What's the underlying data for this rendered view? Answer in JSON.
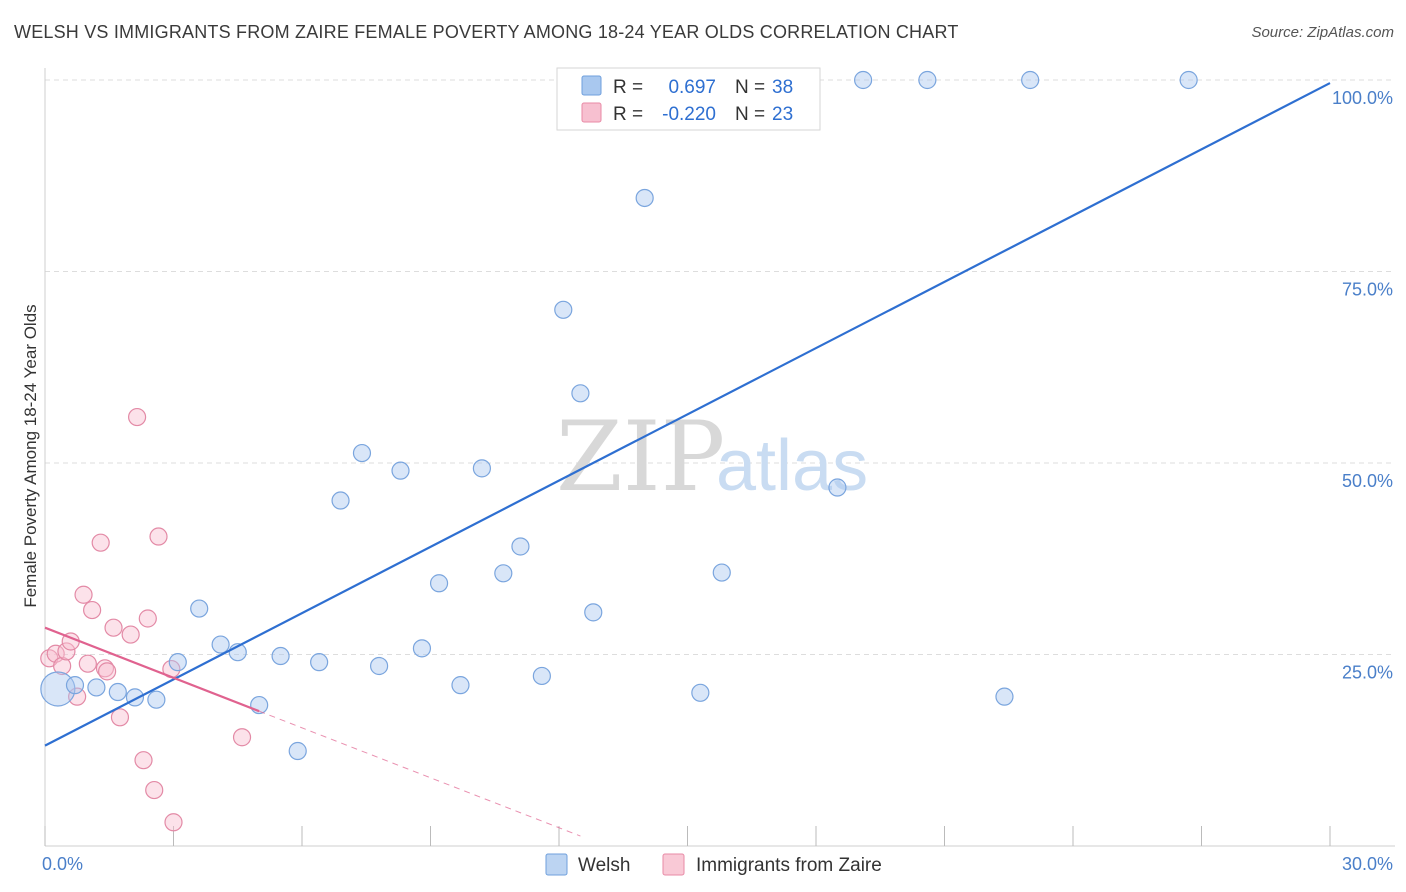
{
  "header": {
    "title": "WELSH VS IMMIGRANTS FROM ZAIRE FEMALE POVERTY AMONG 18-24 YEAR OLDS CORRELATION CHART",
    "source": "Source: ZipAtlas.com"
  },
  "watermark": {
    "zip": "ZIP",
    "atlas": "atlas"
  },
  "stats_legend": {
    "rows": [
      {
        "r_label": "R =",
        "r_value": "0.697",
        "n_label": "N =",
        "n_value": "38",
        "color": "#a9c8ef",
        "border": "#6f9fdc"
      },
      {
        "r_label": "R =",
        "r_value": "-0.220",
        "n_label": "N =",
        "n_value": "23",
        "color": "#f7c0d0",
        "border": "#e88aa6"
      }
    ]
  },
  "bottom_legend": {
    "items": [
      {
        "label": "Welsh",
        "color": "#bcd4f2",
        "border": "#6f9fdc"
      },
      {
        "label": "Immigrants from Zaire",
        "color": "#f9c9d6",
        "border": "#e88aa6"
      }
    ]
  },
  "colors": {
    "welsh_fill": "rgba(170,200,240,0.45)",
    "welsh_stroke": "#7aa5de",
    "welsh_line": "#2e6fd1",
    "zaire_fill": "rgba(248,190,208,0.45)",
    "zaire_stroke": "#e38aa6",
    "zaire_line": "#e0628f",
    "grid": "#dddddd",
    "tick_text": "#4a7fc9"
  },
  "chart_data": {
    "type": "scatter",
    "title": "WELSH VS IMMIGRANTS FROM ZAIRE FEMALE POVERTY AMONG 18-24 YEAR OLDS CORRELATION CHART",
    "xlabel": "",
    "ylabel": "Female Poverty Among 18-24 Year Olds",
    "xlim": [
      0,
      30
    ],
    "ylim": [
      0,
      100
    ],
    "x_tick_labels": [
      {
        "value": 0,
        "label": "0.0%"
      },
      {
        "value": 30,
        "label": "30.0%"
      }
    ],
    "y_tick_labels": [
      {
        "value": 25,
        "label": "25.0%"
      },
      {
        "value": 50,
        "label": "50.0%"
      },
      {
        "value": 75,
        "label": "75.0%"
      },
      {
        "value": 100,
        "label": "100.0%"
      }
    ],
    "x_minor_ticks": [
      0,
      3,
      6,
      9,
      12,
      15,
      18,
      21,
      24,
      27,
      30
    ],
    "grid": true,
    "legend_position": "bottom",
    "series": [
      {
        "name": "Welsh",
        "points": [
          {
            "x": 0.3,
            "y": 20.5,
            "size": "large"
          },
          {
            "x": 0.7,
            "y": 21.0
          },
          {
            "x": 1.2,
            "y": 20.7
          },
          {
            "x": 1.7,
            "y": 20.1
          },
          {
            "x": 2.1,
            "y": 19.4
          },
          {
            "x": 2.6,
            "y": 19.1
          },
          {
            "x": 3.1,
            "y": 24.0
          },
          {
            "x": 3.6,
            "y": 31.0
          },
          {
            "x": 4.1,
            "y": 26.3
          },
          {
            "x": 4.5,
            "y": 25.3
          },
          {
            "x": 5.0,
            "y": 18.4
          },
          {
            "x": 5.5,
            "y": 24.8
          },
          {
            "x": 5.9,
            "y": 12.4
          },
          {
            "x": 6.4,
            "y": 24.0
          },
          {
            "x": 6.9,
            "y": 45.1
          },
          {
            "x": 7.4,
            "y": 51.3
          },
          {
            "x": 7.8,
            "y": 23.5
          },
          {
            "x": 8.3,
            "y": 49.0
          },
          {
            "x": 8.8,
            "y": 25.8
          },
          {
            "x": 9.2,
            "y": 34.3
          },
          {
            "x": 9.7,
            "y": 21.0
          },
          {
            "x": 10.2,
            "y": 49.3
          },
          {
            "x": 10.7,
            "y": 35.6
          },
          {
            "x": 11.1,
            "y": 39.1
          },
          {
            "x": 11.6,
            "y": 22.2
          },
          {
            "x": 12.1,
            "y": 70.0
          },
          {
            "x": 12.5,
            "y": 59.1
          },
          {
            "x": 12.8,
            "y": 30.5
          },
          {
            "x": 14.0,
            "y": 84.6
          },
          {
            "x": 14.6,
            "y": 100.0
          },
          {
            "x": 15.3,
            "y": 20.0
          },
          {
            "x": 15.8,
            "y": 35.7
          },
          {
            "x": 18.5,
            "y": 46.8
          },
          {
            "x": 19.1,
            "y": 100.0
          },
          {
            "x": 20.6,
            "y": 100.0
          },
          {
            "x": 22.4,
            "y": 19.5
          },
          {
            "x": 23.0,
            "y": 100.0
          },
          {
            "x": 26.7,
            "y": 100.0
          }
        ],
        "trend": {
          "x": [
            0,
            30
          ],
          "y": [
            13.1,
            99.6
          ]
        }
      },
      {
        "name": "Immigrants from Zaire",
        "points": [
          {
            "x": 0.1,
            "y": 24.5
          },
          {
            "x": 0.25,
            "y": 25.1
          },
          {
            "x": 0.4,
            "y": 23.5
          },
          {
            "x": 0.5,
            "y": 25.4
          },
          {
            "x": 0.6,
            "y": 26.7
          },
          {
            "x": 0.75,
            "y": 19.5
          },
          {
            "x": 0.9,
            "y": 32.8
          },
          {
            "x": 1.0,
            "y": 23.8
          },
          {
            "x": 1.1,
            "y": 30.8
          },
          {
            "x": 1.3,
            "y": 39.6
          },
          {
            "x": 1.4,
            "y": 23.2
          },
          {
            "x": 1.45,
            "y": 22.8
          },
          {
            "x": 1.6,
            "y": 28.5
          },
          {
            "x": 1.75,
            "y": 16.8
          },
          {
            "x": 2.0,
            "y": 27.6
          },
          {
            "x": 2.15,
            "y": 56.0
          },
          {
            "x": 2.3,
            "y": 11.2
          },
          {
            "x": 2.4,
            "y": 29.7
          },
          {
            "x": 2.55,
            "y": 7.3
          },
          {
            "x": 2.65,
            "y": 40.4
          },
          {
            "x": 2.95,
            "y": 23.1
          },
          {
            "x": 3.0,
            "y": 3.1
          },
          {
            "x": 4.6,
            "y": 14.2
          }
        ],
        "trend": {
          "x": [
            0,
            5.0
          ],
          "y": [
            28.5,
            17.6
          ]
        },
        "trend_dashed": {
          "x": [
            5.0,
            12.5
          ],
          "y": [
            17.6,
            1.3
          ]
        }
      }
    ]
  }
}
